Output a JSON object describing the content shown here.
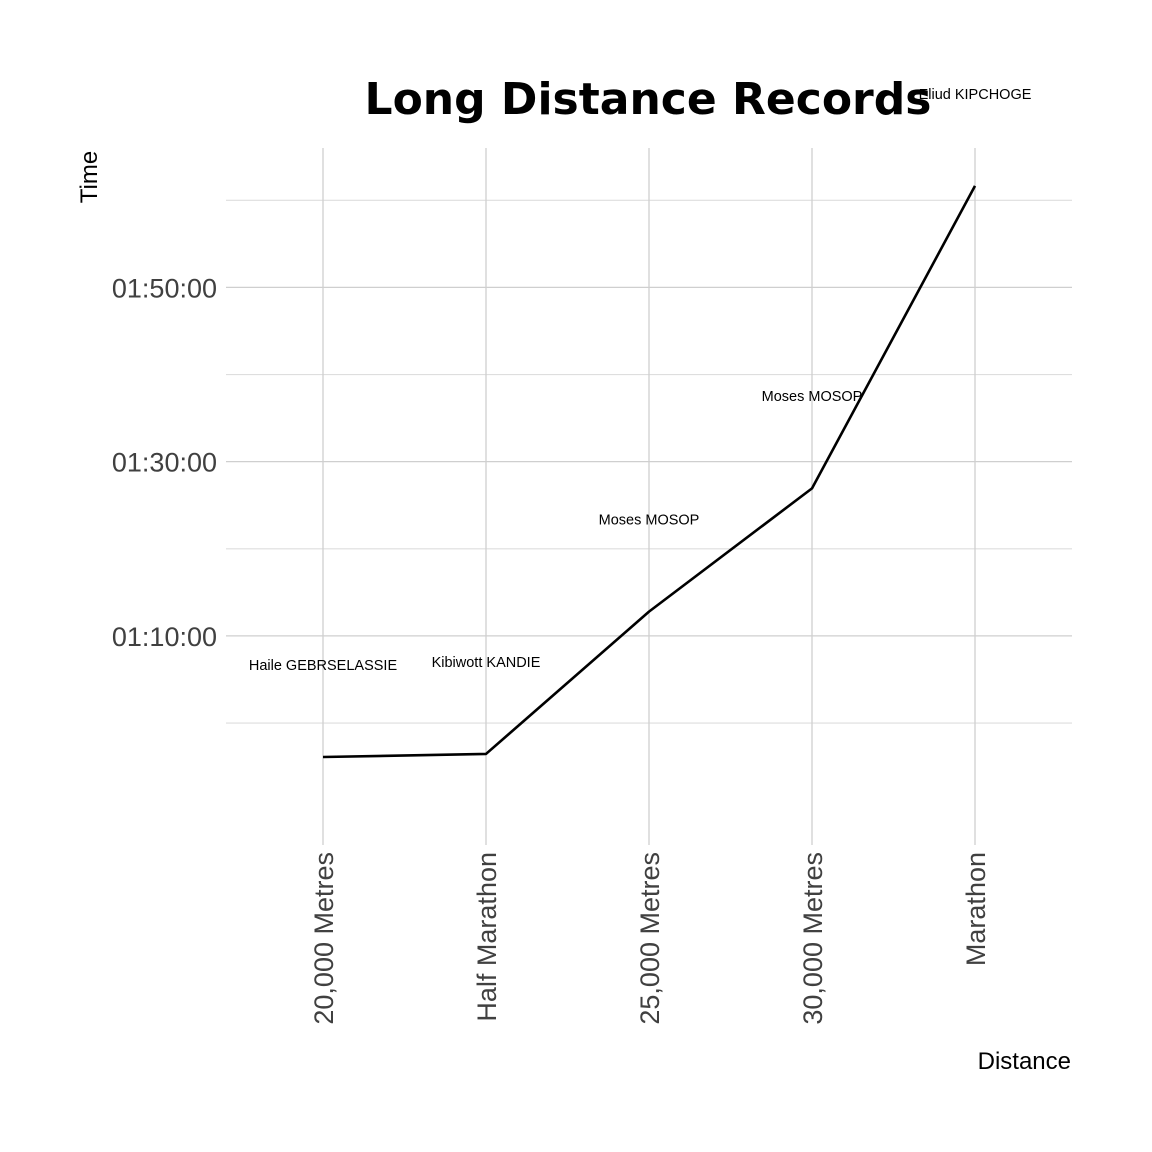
{
  "chart_data": {
    "type": "line",
    "title": "Long Distance Records",
    "xlabel": "Distance",
    "ylabel": "Time",
    "categories": [
      "20,000 Metres",
      "Half Marathon",
      "25,000 Metres",
      "30,000 Metres",
      "Marathon"
    ],
    "values_seconds": [
      3366,
      3387,
      4367,
      5216,
      7299
    ],
    "values": [
      "00:56:06",
      "00:56:27",
      "01:12:47",
      "01:26:56",
      "02:01:39"
    ],
    "point_labels": [
      "Haile GEBRSELASSIE",
      "Kibiwott KANDIE",
      "Moses MOSOP",
      "Moses MOSOP",
      "Eliud KIPCHOGE"
    ],
    "y_ticks_seconds": [
      4200,
      5400,
      6600
    ],
    "y_tick_labels": [
      "01:10:00",
      "01:30:00",
      "01:50:00"
    ],
    "ylim_seconds": [
      2760,
      7560
    ],
    "grid": true,
    "legend": "none"
  }
}
